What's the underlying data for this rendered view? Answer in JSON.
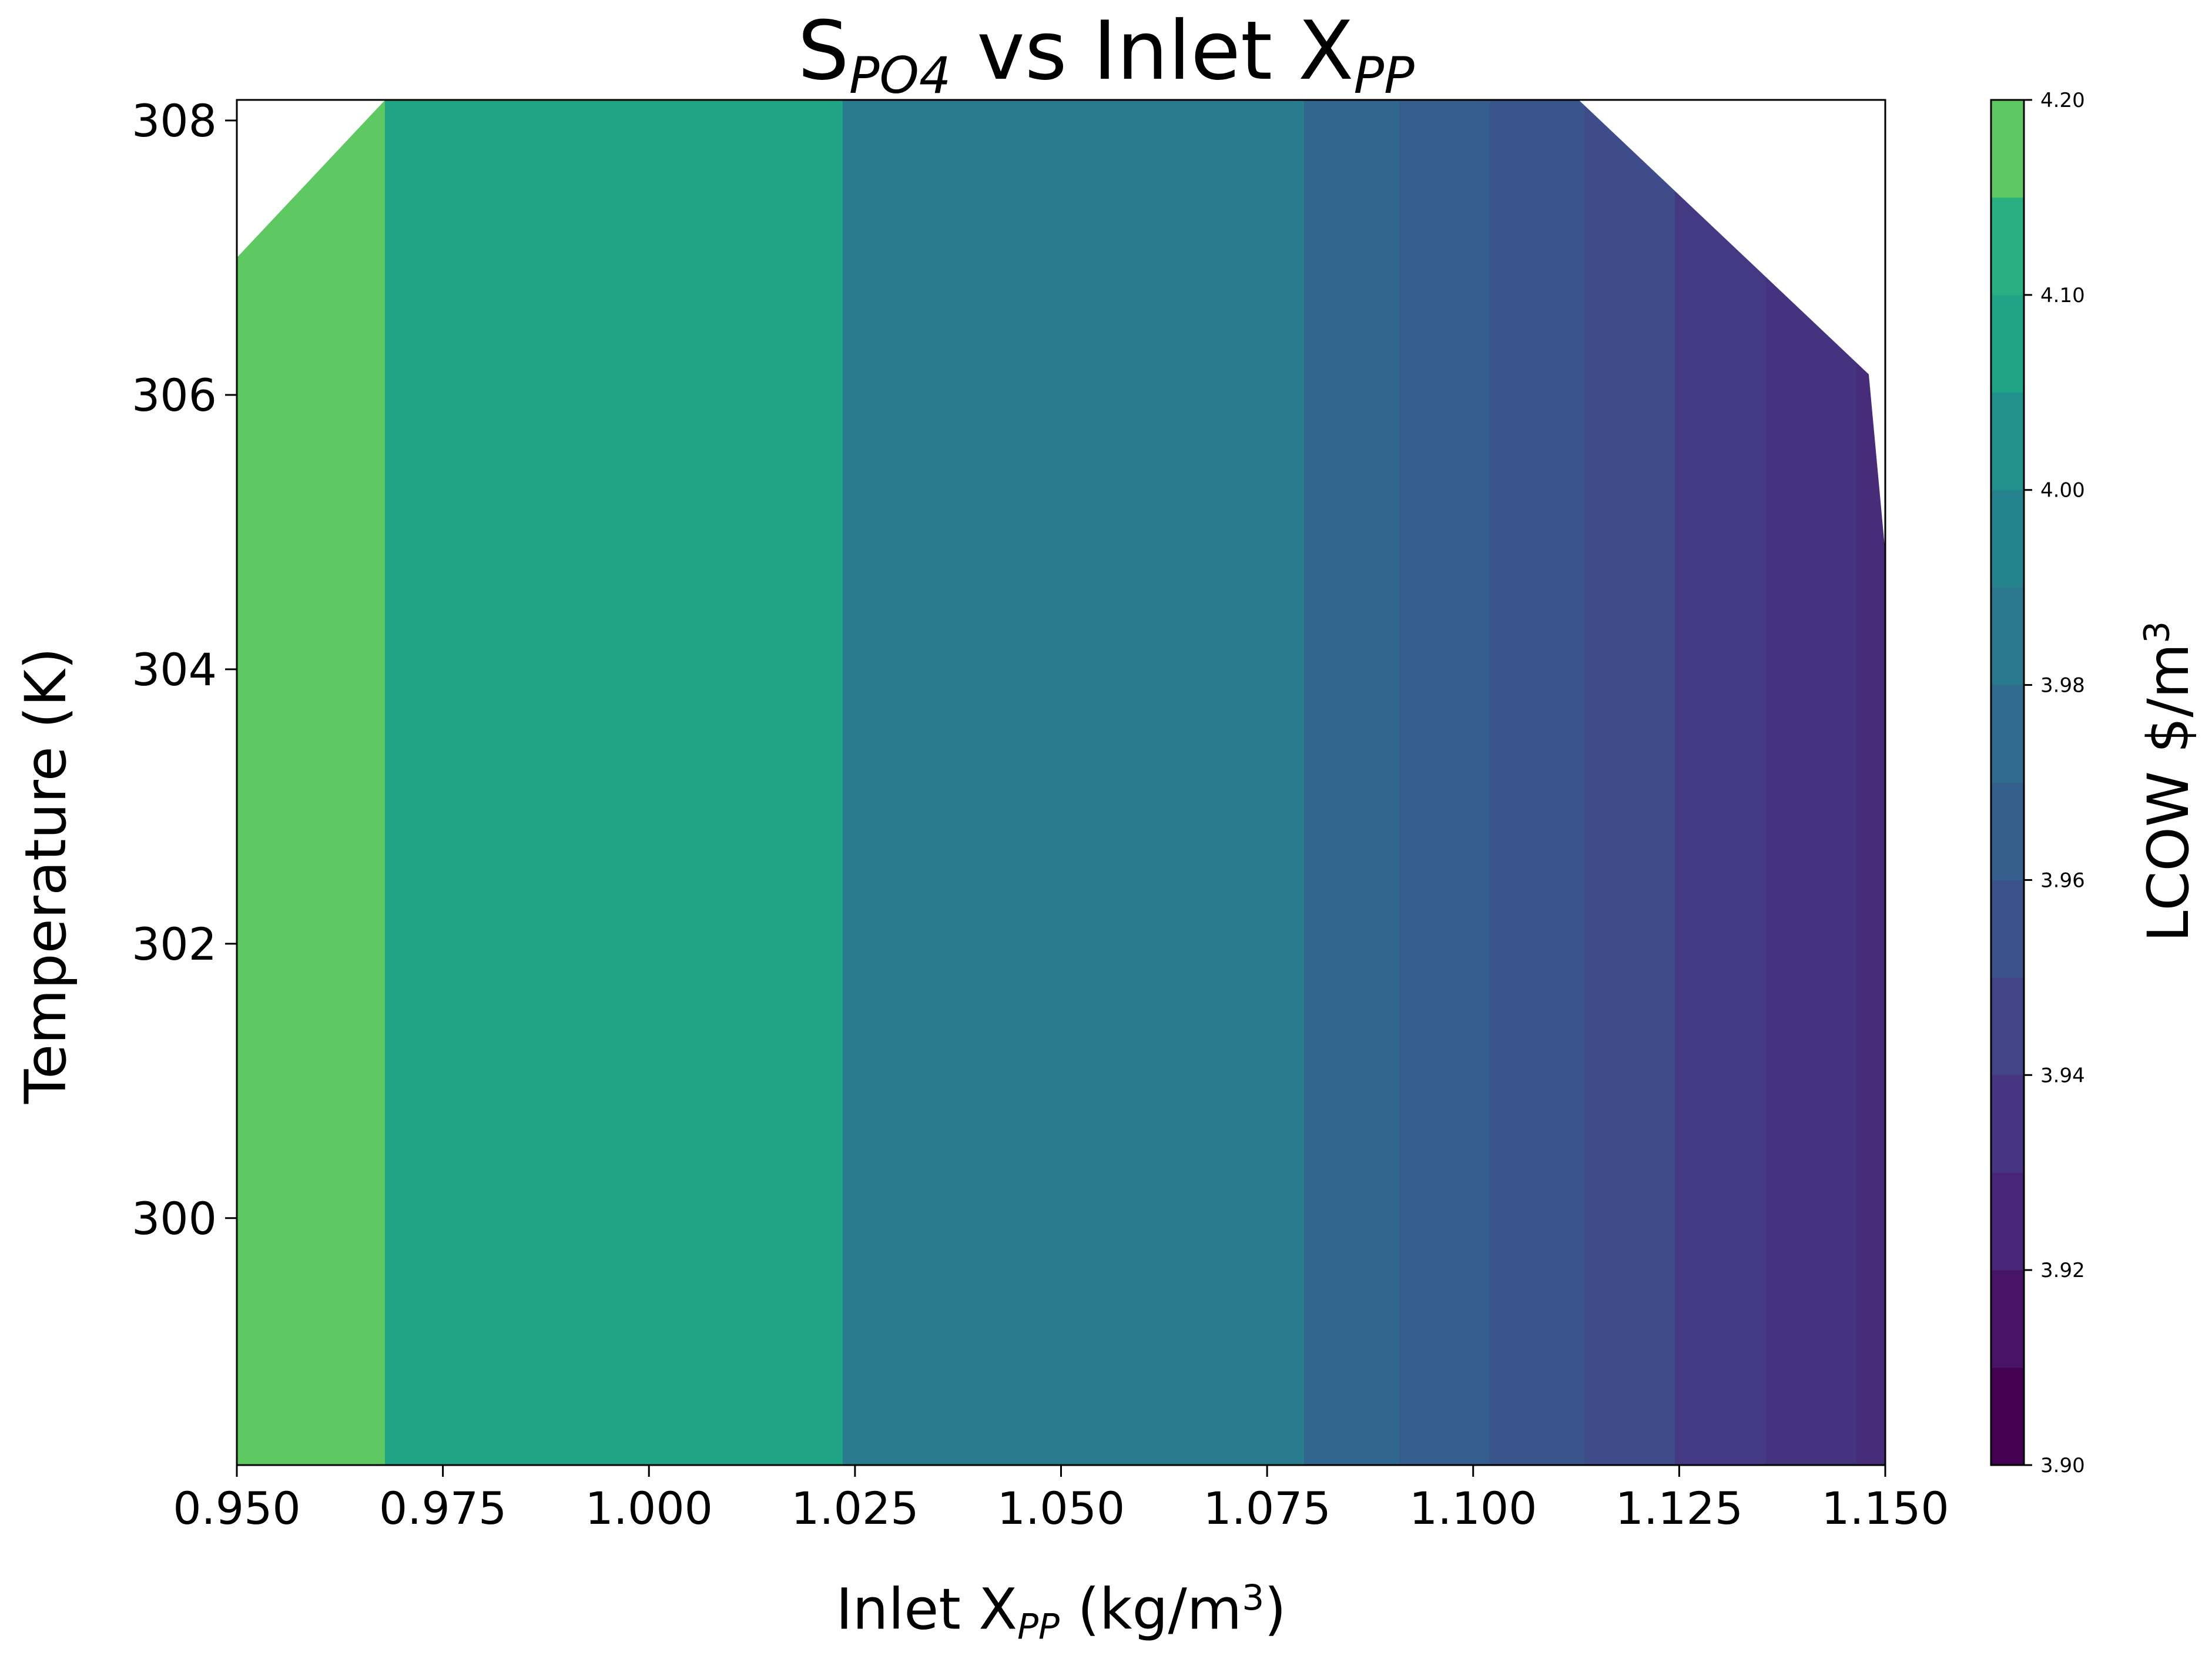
{
  "chart_data": {
    "type": "contourf",
    "title": {
      "main": "S",
      "main_sub": "PO4",
      "mid": " vs Inlet X",
      "end_sub": "PP"
    },
    "xlabel": {
      "pre": "Inlet X",
      "sub": "PP",
      "mid": " (kg/m",
      "sup": "3",
      "post": ")"
    },
    "ylabel": "Temperature (K)",
    "colorbar_label": {
      "pre": "LCOW $/m",
      "sup": "3"
    },
    "xlim": [
      0.95,
      1.15
    ],
    "ylim": [
      298.2,
      308.15
    ],
    "x_ticks": [
      "0.950",
      "0.975",
      "1.000",
      "1.025",
      "1.050",
      "1.075",
      "1.100",
      "1.125",
      "1.150"
    ],
    "y_ticks": [
      "300",
      "302",
      "304",
      "306",
      "308"
    ],
    "colorbar_ticks": [
      "3.90",
      "3.92",
      "3.94",
      "3.96",
      "3.98",
      "4.00",
      "4.10",
      "4.20"
    ],
    "colorbar_levels": [
      3.9,
      3.91,
      3.92,
      3.93,
      3.94,
      3.95,
      3.96,
      3.97,
      3.98,
      3.99,
      4.0,
      4.05,
      4.1,
      4.15,
      4.2
    ],
    "colorbar_colors": [
      "#440154",
      "#481467",
      "#482576",
      "#463480",
      "#414487",
      "#3b528b",
      "#355f8d",
      "#2f6c8e",
      "#2a788e",
      "#25838e",
      "#21918c",
      "#20a486",
      "#28ae80",
      "#5ec962",
      "#c8e020"
    ],
    "bands": [
      {
        "x0": 0.95,
        "x1": 0.968,
        "lcow_range": [
          4.1,
          4.15
        ],
        "color": "#5ec962"
      },
      {
        "x0": 0.968,
        "x1": 1.0235,
        "lcow_range": [
          4.05,
          4.1
        ],
        "color": "#20a486"
      },
      {
        "x0": 1.0235,
        "x1": 1.0795,
        "lcow_range": [
          4.0,
          4.05
        ],
        "color": "#2a7b8d"
      },
      {
        "x0": 1.0795,
        "x1": 1.091,
        "lcow_range": [
          3.99,
          4.0
        ],
        "color": "#31668e"
      },
      {
        "x0": 1.091,
        "x1": 1.102,
        "lcow_range": [
          3.98,
          3.99
        ],
        "color": "#355d8d"
      },
      {
        "x0": 1.102,
        "x1": 1.1135,
        "lcow_range": [
          3.97,
          3.98
        ],
        "color": "#3a548c"
      },
      {
        "x0": 1.1135,
        "x1": 1.1245,
        "lcow_range": [
          3.96,
          3.97
        ],
        "color": "#3e4c8a"
      },
      {
        "x0": 1.1245,
        "x1": 1.1355,
        "lcow_range": [
          3.95,
          3.96
        ],
        "color": "#443a83"
      },
      {
        "x0": 1.1355,
        "x1": 1.1465,
        "lcow_range": [
          3.94,
          3.95
        ],
        "color": "#46337f"
      },
      {
        "x0": 1.1465,
        "x1": 1.15,
        "lcow_range": [
          3.93,
          3.94
        ],
        "color": "#472c7a"
      }
    ],
    "valid_region_boundary": [
      [
        0.95,
        307.0
      ],
      [
        0.968,
        308.15
      ],
      [
        1.1128,
        308.15
      ],
      [
        1.148,
        306.15
      ],
      [
        1.15,
        304.85
      ]
    ]
  }
}
